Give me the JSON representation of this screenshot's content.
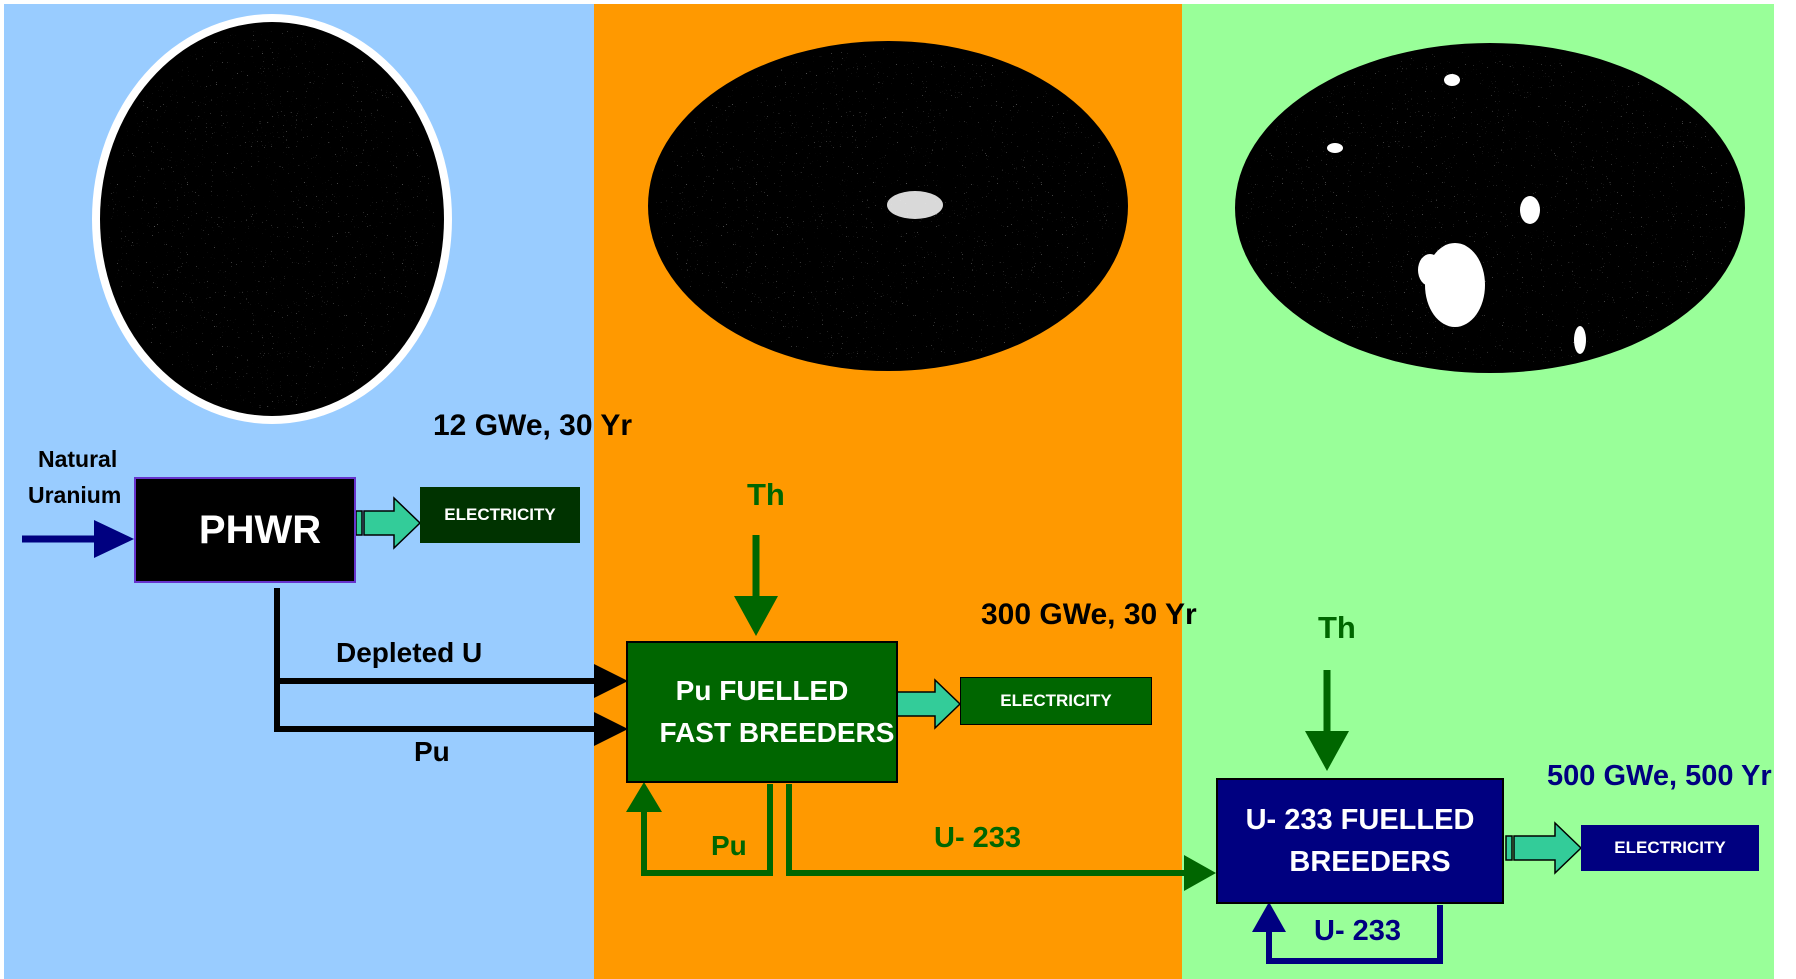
{
  "colors": {
    "stage1_bg": "#99ccff",
    "stage2_bg": "#ff9900",
    "stage3_bg": "#99ff99",
    "phwr_box": "#000000",
    "fbr_box": "#006600",
    "u233_box": "#000080",
    "green_text": "#006600",
    "navy_text": "#000080",
    "transfer_arrow": "#33cc99"
  },
  "stage1": {
    "input_label_line1": "Natural",
    "input_label_line2": "Uranium",
    "reactor_label": "PHWR",
    "capacity": "12 GWe, 30 Yr",
    "output_label": "ELECTRICITY",
    "depleted_label": "Depleted U",
    "pu_label": "Pu"
  },
  "stage2": {
    "th_label": "Th",
    "reactor_label_line1": "Pu FUELLED",
    "reactor_label_line2": "FAST BREEDERS",
    "capacity": "300 GWe, 30 Yr",
    "output_label": "ELECTRICITY",
    "recycle_label": "Pu",
    "u233_label": "U- 233"
  },
  "stage3": {
    "th_label": "Th",
    "reactor_label_line1": "U-  233 FUELLED",
    "reactor_label_line2": "BREEDERS",
    "capacity": "500 GWe, 500 Yr",
    "output_label": "ELECTRICITY",
    "recycle_label": "U- 233"
  }
}
